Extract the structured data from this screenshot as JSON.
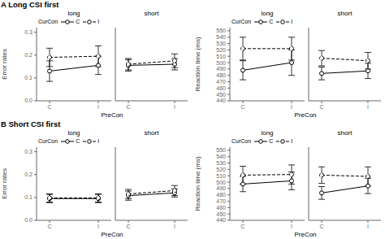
{
  "chart_data": [
    {
      "type": "line",
      "title": "long",
      "subtitle": "A  Long CSI first",
      "ylabel": "Error rates",
      "xlabel": "PreCon",
      "legend": "upper left",
      "annotations": [
        "CurCon"
      ],
      "categories": [
        "C",
        "I"
      ],
      "ylim": [
        0,
        0.32
      ],
      "yticks": [
        {
          "value": 0,
          "label": "0.0"
        },
        0.1,
        0.2,
        0.3
      ],
      "series": [
        {
          "name": "C",
          "color": "#000000",
          "line_style": "solid",
          "marker": "o",
          "values": [
            0.13,
            0.155
          ],
          "errors": [
            0.045,
            0.04
          ]
        },
        {
          "name": "I",
          "color": "#000000",
          "line_style": "dashed",
          "marker": "o",
          "values": [
            0.19,
            0.195
          ],
          "errors": [
            0.04,
            0.045
          ]
        }
      ]
    },
    {
      "type": "line",
      "title": "short",
      "tick_labels": "x",
      "categories": [
        "C",
        "I"
      ],
      "ylim": [
        0,
        0.32
      ],
      "yticks": [
        {
          "value": 0,
          "label": "0.0"
        },
        0.1,
        0.2,
        0.3
      ],
      "series": [
        {
          "name": "C",
          "color": "#000000",
          "line_style": "solid",
          "marker": "o",
          "values": [
            0.155,
            0.16
          ],
          "errors": [
            0.025,
            0.025
          ]
        },
        {
          "name": "I",
          "color": "#000000",
          "line_style": "dashed",
          "marker": "o",
          "values": [
            0.16,
            0.175
          ],
          "errors": [
            0.025,
            0.03
          ]
        }
      ]
    },
    {
      "type": "line",
      "title": "long",
      "ylabel": "Reaction time (ms)",
      "xlabel": "PreCon",
      "legend": "upper left",
      "annotations": [
        "CurCon"
      ],
      "categories": [
        "C",
        "I"
      ],
      "ylim": [
        440,
        555
      ],
      "yticks": [
        440,
        450,
        460,
        470,
        480,
        490,
        500,
        510,
        520,
        530,
        540,
        550
      ],
      "series": [
        {
          "name": "C",
          "color": "#000000",
          "line_style": "solid",
          "marker": "o",
          "values": [
            488,
            500
          ],
          "errors": [
            15,
            20
          ]
        },
        {
          "name": "I",
          "color": "#000000",
          "line_style": "dashed",
          "marker": "o",
          "values": [
            522,
            522
          ],
          "errors": [
            18,
            18
          ]
        }
      ]
    },
    {
      "type": "line",
      "title": "short",
      "tick_labels": "x",
      "categories": [
        "C",
        "I"
      ],
      "ylim": [
        440,
        555
      ],
      "yticks": [
        440,
        450,
        460,
        470,
        480,
        490,
        500,
        510,
        520,
        530,
        540,
        550
      ],
      "series": [
        {
          "name": "C",
          "color": "#000000",
          "line_style": "solid",
          "marker": "o",
          "values": [
            483,
            487
          ],
          "errors": [
            10,
            12
          ]
        },
        {
          "name": "I",
          "color": "#000000",
          "line_style": "dashed",
          "marker": "o",
          "values": [
            507,
            503
          ],
          "errors": [
            12,
            13
          ]
        }
      ]
    },
    {
      "type": "line",
      "title": "long",
      "subtitle": "B  Short CSI first",
      "ylabel": "Error rates",
      "xlabel": "PreCon",
      "legend": "upper left",
      "annotations": [
        "CurCon"
      ],
      "categories": [
        "C",
        "I"
      ],
      "ylim": [
        0,
        0.32
      ],
      "yticks": [
        {
          "value": 0,
          "label": "0.0"
        },
        0.1,
        0.2,
        0.3
      ],
      "series": [
        {
          "name": "C",
          "color": "#000000",
          "line_style": "solid",
          "marker": "o",
          "values": [
            0.095,
            0.095
          ],
          "errors": [
            0.018,
            0.018
          ]
        },
        {
          "name": "I",
          "color": "#000000",
          "line_style": "dashed",
          "marker": "o",
          "values": [
            0.098,
            0.098
          ],
          "errors": [
            0.018,
            0.018
          ]
        }
      ]
    },
    {
      "type": "line",
      "title": "short",
      "tick_labels": "x",
      "categories": [
        "C",
        "I"
      ],
      "ylim": [
        0,
        0.32
      ],
      "yticks": [
        {
          "value": 0,
          "label": "0.0"
        },
        0.1,
        0.2,
        0.3
      ],
      "series": [
        {
          "name": "C",
          "color": "#000000",
          "line_style": "solid",
          "marker": "o",
          "values": [
            0.108,
            0.12
          ],
          "errors": [
            0.02,
            0.018
          ]
        },
        {
          "name": "I",
          "color": "#000000",
          "line_style": "dashed",
          "marker": "o",
          "values": [
            0.115,
            0.13
          ],
          "errors": [
            0.02,
            0.022
          ]
        }
      ]
    },
    {
      "type": "line",
      "title": "long",
      "ylabel": "Reaction time (ms)",
      "xlabel": "PreCon",
      "legend": "upper left",
      "annotations": [
        "CurCon"
      ],
      "categories": [
        "C",
        "I"
      ],
      "ylim": [
        440,
        555
      ],
      "yticks": [
        440,
        450,
        460,
        470,
        480,
        490,
        500,
        510,
        520,
        530,
        540,
        550
      ],
      "series": [
        {
          "name": "C",
          "color": "#000000",
          "line_style": "solid",
          "marker": "o",
          "values": [
            497,
            502
          ],
          "errors": [
            12,
            14
          ]
        },
        {
          "name": "I",
          "color": "#000000",
          "line_style": "dashed",
          "marker": "o",
          "values": [
            511,
            512
          ],
          "errors": [
            14,
            15
          ]
        }
      ]
    },
    {
      "type": "line",
      "title": "short",
      "tick_labels": "x",
      "categories": [
        "C",
        "I"
      ],
      "ylim": [
        440,
        555
      ],
      "yticks": [
        440,
        450,
        460,
        470,
        480,
        490,
        500,
        510,
        520,
        530,
        540,
        550
      ],
      "series": [
        {
          "name": "C",
          "color": "#000000",
          "line_style": "solid",
          "marker": "o",
          "values": [
            483,
            494
          ],
          "errors": [
            10,
            12
          ]
        },
        {
          "name": "I",
          "color": "#000000",
          "line_style": "dashed",
          "marker": "o",
          "values": [
            511,
            509
          ],
          "errors": [
            13,
            15
          ]
        }
      ]
    }
  ]
}
